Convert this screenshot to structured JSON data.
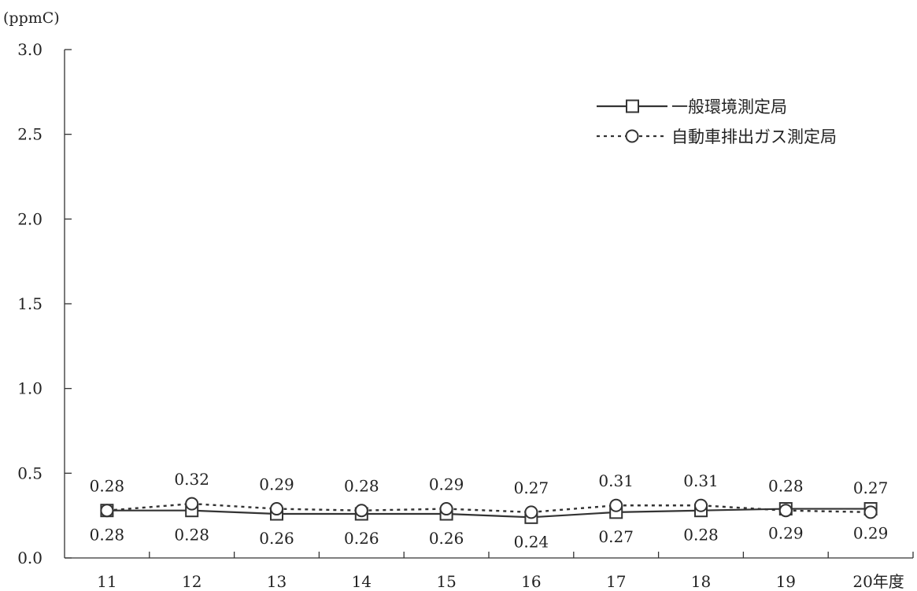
{
  "chart_data": {
    "type": "line",
    "unit_label": "(ppmC)",
    "categories": [
      "11",
      "12",
      "13",
      "14",
      "15",
      "16",
      "17",
      "18",
      "19",
      "20年度"
    ],
    "ylim": [
      0.0,
      3.0
    ],
    "yticks": [
      "0.0",
      "0.5",
      "1.0",
      "1.5",
      "2.0",
      "2.5",
      "3.0"
    ],
    "grid": false,
    "legend_position": "top-right",
    "series": [
      {
        "name": "一般環境測定局",
        "marker": "square",
        "line_style": "solid",
        "color": "#333333",
        "values": [
          0.28,
          0.28,
          0.26,
          0.26,
          0.26,
          0.24,
          0.27,
          0.28,
          0.29,
          0.29
        ],
        "labels": [
          "0.28",
          "0.28",
          "0.26",
          "0.26",
          "0.26",
          "0.24",
          "0.27",
          "0.28",
          "0.29",
          "0.29"
        ]
      },
      {
        "name": "自動車排出ガス測定局",
        "marker": "circle",
        "line_style": "dotted",
        "color": "#333333",
        "values": [
          0.28,
          0.32,
          0.29,
          0.28,
          0.29,
          0.27,
          0.31,
          0.31,
          0.28,
          0.27
        ],
        "labels": [
          "0.28",
          "0.32",
          "0.29",
          "0.28",
          "0.29",
          "0.27",
          "0.31",
          "0.31",
          "0.28",
          "0.27"
        ]
      }
    ]
  }
}
